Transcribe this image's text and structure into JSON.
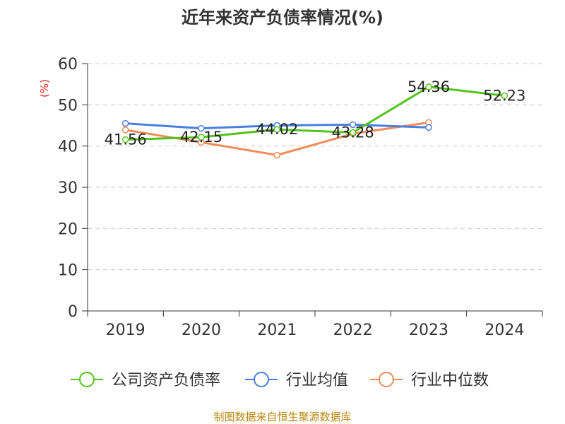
{
  "chart_data": {
    "type": "line",
    "title": "近年来资产负债率情况(%)",
    "ylabel": "(%)",
    "xlabel": "",
    "categories": [
      "2019",
      "2020",
      "2021",
      "2022",
      "2023",
      "2024"
    ],
    "ylim": [
      0,
      60
    ],
    "yticks": [
      0,
      10,
      20,
      30,
      40,
      50,
      60
    ],
    "grid": true,
    "legend_position": "bottom",
    "series": [
      {
        "name": "公司资产负债率",
        "color": "#52c41a",
        "values": [
          41.56,
          42.15,
          44.02,
          43.28,
          54.36,
          52.23
        ],
        "labels": [
          "41.56",
          "42.15",
          "44.02",
          "43.28",
          "54.36",
          "52.23"
        ]
      },
      {
        "name": "行业均值",
        "color": "#4a7fe0",
        "values": [
          45.5,
          44.3,
          45.0,
          45.2,
          44.5,
          null
        ]
      },
      {
        "name": "行业中位数",
        "color": "#f28c5a",
        "values": [
          43.9,
          40.9,
          37.8,
          43.0,
          45.7,
          null
        ]
      }
    ],
    "source": "制图数据来自恒生聚源数据库"
  }
}
